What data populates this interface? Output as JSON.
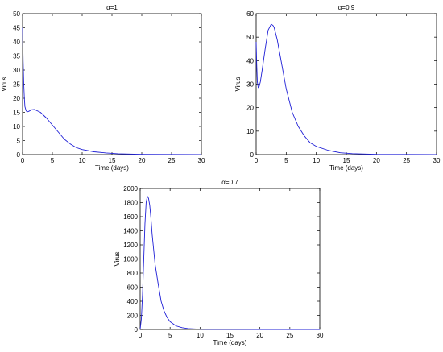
{
  "chart_data": [
    {
      "type": "line",
      "title": "α=1",
      "xlabel": "Time (days)",
      "ylabel": "Virus",
      "xlim": [
        0,
        30
      ],
      "ylim": [
        0,
        50
      ],
      "xticks": [
        0,
        5,
        10,
        15,
        20,
        25,
        30
      ],
      "yticks": [
        0,
        5,
        10,
        15,
        20,
        25,
        30,
        35,
        40,
        45,
        50
      ],
      "grid": false,
      "series": [
        {
          "color": "#1f1fd6",
          "x": [
            0,
            0.1,
            0.2,
            0.3,
            0.4,
            0.6,
            0.8,
            1,
            1.5,
            2,
            3,
            4,
            5,
            6,
            7,
            8,
            9,
            10,
            12,
            14,
            16,
            18,
            20,
            25,
            30
          ],
          "y": [
            45,
            33,
            25,
            20,
            17,
            15.5,
            15.2,
            15.3,
            15.9,
            16,
            15,
            13,
            10.5,
            8,
            5.5,
            3.8,
            2.5,
            1.8,
            1,
            0.6,
            0.3,
            0.2,
            0.1,
            0.05,
            0
          ]
        }
      ]
    },
    {
      "type": "line",
      "title": "α=0.9",
      "xlabel": "Time (days)",
      "ylabel": "Virus",
      "xlim": [
        0,
        30
      ],
      "ylim": [
        0,
        60
      ],
      "xticks": [
        0,
        5,
        10,
        15,
        20,
        25,
        30
      ],
      "yticks": [
        0,
        10,
        20,
        30,
        40,
        50,
        60
      ],
      "grid": false,
      "series": [
        {
          "color": "#1f1fd6",
          "x": [
            0,
            0.1,
            0.2,
            0.35,
            0.5,
            0.7,
            1,
            1.5,
            2,
            2.5,
            2.8,
            3,
            3.5,
            4,
            5,
            6,
            7,
            8,
            9,
            10,
            12,
            14,
            16,
            20,
            25,
            30
          ],
          "y": [
            48,
            38,
            31,
            28.5,
            29,
            31,
            36,
            45,
            53,
            55.5,
            55,
            54,
            49,
            42,
            28,
            18,
            12,
            8,
            5,
            3.5,
            1.8,
            0.8,
            0.4,
            0.1,
            0.05,
            0
          ]
        }
      ]
    },
    {
      "type": "line",
      "title": "α=0.7",
      "xlabel": "Time (days)",
      "ylabel": "Virus",
      "xlim": [
        0,
        30
      ],
      "ylim": [
        0,
        2000
      ],
      "xticks": [
        0,
        5,
        10,
        15,
        20,
        25,
        30
      ],
      "yticks": [
        0,
        200,
        400,
        600,
        800,
        1000,
        1200,
        1400,
        1600,
        1800,
        2000
      ],
      "grid": false,
      "series": [
        {
          "color": "#1f1fd6",
          "x": [
            0,
            0.2,
            0.4,
            0.6,
            0.8,
            1,
            1.2,
            1.4,
            1.6,
            1.8,
            2,
            2.5,
            3,
            3.5,
            4,
            4.5,
            5,
            6,
            7,
            8,
            10,
            12,
            15,
            20,
            30
          ],
          "y": [
            0,
            150,
            500,
            1000,
            1500,
            1800,
            1890,
            1860,
            1760,
            1580,
            1350,
            920,
            650,
            400,
            260,
            170,
            110,
            50,
            25,
            12,
            4,
            1,
            0.5,
            0,
            0
          ]
        }
      ]
    }
  ]
}
